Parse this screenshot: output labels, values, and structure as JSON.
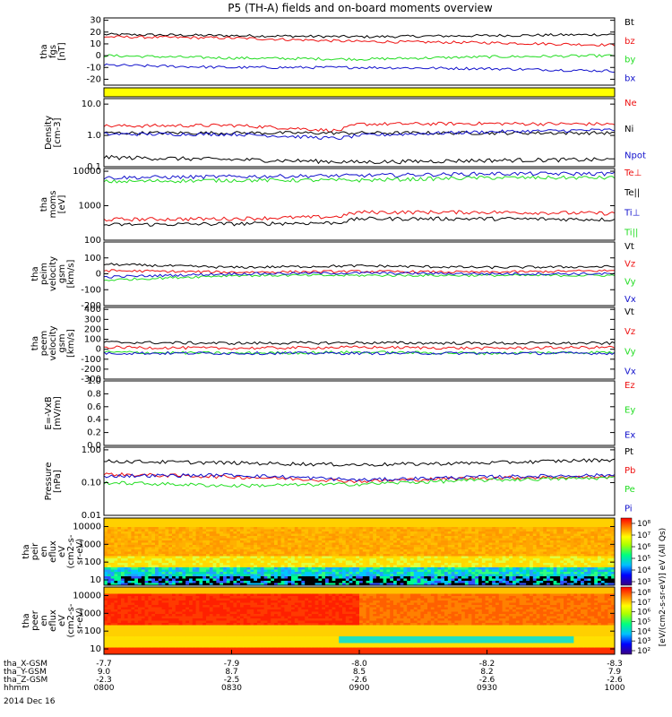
{
  "title": "P5 (TH-A) fields and on-board moments overview",
  "date": "2014 Dec 16",
  "time_axis": {
    "rows": [
      {
        "label": "tha_X-GSM",
        "values": [
          "-7.7",
          "-7.9",
          "-8.0",
          "-8.2",
          "-8.3"
        ]
      },
      {
        "label": "tha_Y-GSM",
        "values": [
          "9.0",
          "8.7",
          "8.5",
          "8.2",
          "7.9"
        ]
      },
      {
        "label": "tha_Z-GSM",
        "values": [
          "-2.3",
          "-2.5",
          "-2.6",
          "-2.6",
          "-2.6"
        ]
      },
      {
        "label": "hhmm",
        "values": [
          "0800",
          "0830",
          "0900",
          "0930",
          "1000"
        ]
      }
    ]
  },
  "colors": {
    "black": "#000000",
    "red": "#ee1111",
    "green": "#22dd22",
    "blue": "#1111cc",
    "yellow": "#ffff00"
  },
  "chart_data": [
    {
      "type": "line",
      "ylabel_lines": [
        "tha",
        "fgs",
        "[nT]"
      ],
      "ylim": [
        -25,
        32
      ],
      "yticks": [
        "30",
        "20",
        "10",
        "0",
        "-10",
        "-20"
      ],
      "series": [
        {
          "name": "Bt",
          "color": "#000000",
          "x": [
            "0800",
            "0830",
            "0900",
            "0930",
            "1000"
          ],
          "values": [
            18,
            17,
            16,
            17,
            18
          ]
        },
        {
          "name": "bz",
          "color": "#ee1111",
          "x": [
            "0800",
            "0830",
            "0900",
            "0930",
            "1000"
          ],
          "values": [
            16,
            15,
            12,
            11,
            9
          ]
        },
        {
          "name": "by",
          "color": "#22dd22",
          "x": [
            "0800",
            "0830",
            "0900",
            "0930",
            "1000"
          ],
          "values": [
            0,
            -2,
            -3,
            -1,
            0
          ]
        },
        {
          "name": "bx",
          "color": "#1111cc",
          "x": [
            "0800",
            "0830",
            "0900",
            "0930",
            "1000"
          ],
          "values": [
            -8,
            -10,
            -10,
            -11,
            -13
          ]
        }
      ]
    },
    {
      "type": "bar",
      "note_series": "yellow mode bar",
      "series": [
        {
          "color": "#ffff00",
          "x": [
            "0800",
            "1000"
          ],
          "values": [
            1,
            1
          ]
        }
      ]
    },
    {
      "type": "line",
      "ylabel_lines": [
        "Density",
        "[cm-3]"
      ],
      "yscale": "log",
      "ylim": [
        0.1,
        15
      ],
      "yticks": [
        "10.0",
        "1.0",
        "0.1"
      ],
      "series": [
        {
          "name": "Ne",
          "color": "#ee1111",
          "x": [
            "0800",
            "0830",
            "0855",
            "0900",
            "0930",
            "1000"
          ],
          "values": [
            2.0,
            2.1,
            1.4,
            2.3,
            2.4,
            2.3
          ]
        },
        {
          "name": "Ni",
          "color": "#000000",
          "x": [
            "0800",
            "0830",
            "0900",
            "0930",
            "1000"
          ],
          "values": [
            1.2,
            1.2,
            1.2,
            1.2,
            1.2
          ]
        },
        {
          "name": "Npot",
          "color": "#1111cc",
          "x": [
            "0800",
            "0830",
            "0855",
            "0900",
            "0930",
            "1000"
          ],
          "values": [
            1.1,
            1.1,
            0.8,
            1.0,
            1.3,
            1.5
          ]
        }
      ],
      "extra_trace": {
        "color": "#000000",
        "x": [
          "0800",
          "0830",
          "0900",
          "0930",
          "1000"
        ],
        "values": [
          0.2,
          0.17,
          0.14,
          0.16,
          0.17
        ]
      }
    },
    {
      "type": "line",
      "ylabel_lines": [
        "tha",
        "moms",
        "[eV]"
      ],
      "yscale": "log",
      "ylim": [
        100,
        12000
      ],
      "yticks": [
        "10000",
        "1000",
        "100"
      ],
      "series": [
        {
          "name": "Te⊥",
          "color": "#ee1111",
          "x": [
            "0800",
            "0830",
            "0855",
            "0900",
            "0930",
            "1000"
          ],
          "values": [
            400,
            420,
            480,
            650,
            650,
            600
          ]
        },
        {
          "name": "Te||",
          "color": "#000000",
          "x": [
            "0800",
            "0830",
            "0855",
            "0900",
            "0930",
            "1000"
          ],
          "values": [
            280,
            300,
            320,
            420,
            420,
            400
          ]
        },
        {
          "name": "Ti⊥",
          "color": "#1111cc",
          "x": [
            "0800",
            "0830",
            "0900",
            "0930",
            "1000"
          ],
          "values": [
            6500,
            7000,
            7500,
            8500,
            8500
          ]
        },
        {
          "name": "Ti||",
          "color": "#22dd22",
          "x": [
            "0800",
            "0830",
            "0900",
            "0930",
            "1000"
          ],
          "values": [
            5000,
            5500,
            5500,
            6500,
            6500
          ]
        }
      ]
    },
    {
      "type": "line",
      "ylabel_lines": [
        "tha",
        "peim",
        "velocity",
        "gsm",
        "[km/s]"
      ],
      "ylim": [
        -200,
        200
      ],
      "yticks": [
        "100",
        "0",
        "-100",
        "-200"
      ],
      "series": [
        {
          "name": "Vt",
          "color": "#000000",
          "x": [
            "0800",
            "0830",
            "0900",
            "0930",
            "1000"
          ],
          "values": [
            60,
            40,
            50,
            40,
            45
          ]
        },
        {
          "name": "Vz",
          "color": "#ee1111",
          "x": [
            "0800",
            "0830",
            "0900",
            "0930",
            "1000"
          ],
          "values": [
            20,
            10,
            15,
            10,
            20
          ]
        },
        {
          "name": "Vy",
          "color": "#22dd22",
          "x": [
            "0800",
            "0830",
            "0900",
            "0930",
            "1000"
          ],
          "values": [
            -40,
            -10,
            -10,
            -10,
            -10
          ]
        },
        {
          "name": "Vx",
          "color": "#1111cc",
          "x": [
            "0800",
            "0830",
            "0900",
            "0930",
            "1000"
          ],
          "values": [
            -20,
            0,
            5,
            0,
            0
          ]
        }
      ]
    },
    {
      "type": "line",
      "ylabel_lines": [
        "tha",
        "peem",
        "velocity",
        "gsm",
        "[km/s]"
      ],
      "ylim": [
        -300,
        420
      ],
      "yticks": [
        "400",
        "300",
        "200",
        "100",
        "0",
        "-100",
        "-200",
        "-300"
      ],
      "series": [
        {
          "name": "Vt",
          "color": "#000000",
          "x": [
            "0800",
            "0830",
            "0900",
            "0930",
            "1000"
          ],
          "values": [
            70,
            60,
            65,
            60,
            60
          ]
        },
        {
          "name": "Vz",
          "color": "#ee1111",
          "x": [
            "0800",
            "0830",
            "0900",
            "0930",
            "1000"
          ],
          "values": [
            20,
            10,
            20,
            10,
            20
          ]
        },
        {
          "name": "Vy",
          "color": "#22dd22",
          "x": [
            "0800",
            "0830",
            "0900",
            "0930",
            "1000"
          ],
          "values": [
            -30,
            -40,
            -30,
            -40,
            -30
          ]
        },
        {
          "name": "Vx",
          "color": "#1111cc",
          "x": [
            "0800",
            "0830",
            "0900",
            "0930",
            "1000"
          ],
          "values": [
            -40,
            -40,
            -40,
            -40,
            -40
          ]
        }
      ]
    },
    {
      "type": "line",
      "ylabel_lines": [
        "E=-VxB",
        "[mV/m]"
      ],
      "ylim": [
        0,
        1
      ],
      "yticks": [
        "1.0",
        "0.8",
        "0.6",
        "0.4",
        "0.2",
        "0.0"
      ],
      "series": [
        {
          "name": "Ez",
          "color": "#ee1111",
          "values": []
        },
        {
          "name": "Ey",
          "color": "#22dd22",
          "values": []
        },
        {
          "name": "Ex",
          "color": "#1111cc",
          "values": []
        }
      ]
    },
    {
      "type": "line",
      "ylabel_lines": [
        "Pressure",
        "[nPa]"
      ],
      "yscale": "log",
      "ylim": [
        0.01,
        1.2
      ],
      "yticks": [
        "1.00",
        "0.10",
        "0.01"
      ],
      "series": [
        {
          "name": "Pt",
          "color": "#000000",
          "x": [
            "0800",
            "0830",
            "0900",
            "0930",
            "1000"
          ],
          "values": [
            0.45,
            0.4,
            0.35,
            0.4,
            0.5
          ]
        },
        {
          "name": "Pb",
          "color": "#ee1111",
          "x": [
            "0800",
            "0830",
            "0900",
            "0930",
            "1000"
          ],
          "values": [
            0.18,
            0.15,
            0.11,
            0.14,
            0.15
          ]
        },
        {
          "name": "Pe",
          "color": "#22dd22",
          "x": [
            "0800",
            "0830",
            "0900",
            "0930",
            "1000"
          ],
          "values": [
            0.1,
            0.08,
            0.09,
            0.12,
            0.14
          ]
        },
        {
          "name": "Pi",
          "color": "#1111cc",
          "x": [
            "0800",
            "0830",
            "0900",
            "0930",
            "1000"
          ],
          "values": [
            0.16,
            0.17,
            0.12,
            0.15,
            0.17
          ]
        }
      ]
    },
    {
      "type": "heatmap",
      "ylabel_lines": [
        "tha",
        "peir",
        "en",
        "eflux",
        "eV",
        "(cm2-s-",
        "sr-eV)"
      ],
      "yscale": "log",
      "ylim": [
        5,
        30000
      ],
      "yticks": [
        "10000",
        "1000",
        "100",
        "10"
      ],
      "colorbar": {
        "label": "[eV/(cm2-s-sr-eV)] eV (All Qs)",
        "ticks": [
          "10⁸",
          "10⁷",
          "10⁶",
          "10⁵",
          "10⁴",
          "10³"
        ]
      }
    },
    {
      "type": "heatmap",
      "ylabel_lines": [
        "tha",
        "peer",
        "en",
        "eflux",
        "eV",
        "(cm2-s-",
        "sr-eV)"
      ],
      "yscale": "log",
      "ylim": [
        5,
        30000
      ],
      "yticks": [
        "10000",
        "1000",
        "100",
        "10"
      ],
      "colorbar": {
        "label": "[eV/(cm2-s-sr-eV)] eV (All Qs)",
        "ticks": [
          "10⁸",
          "10⁷",
          "10⁶",
          "10⁵",
          "10⁴",
          "10³",
          "10²"
        ]
      }
    }
  ]
}
